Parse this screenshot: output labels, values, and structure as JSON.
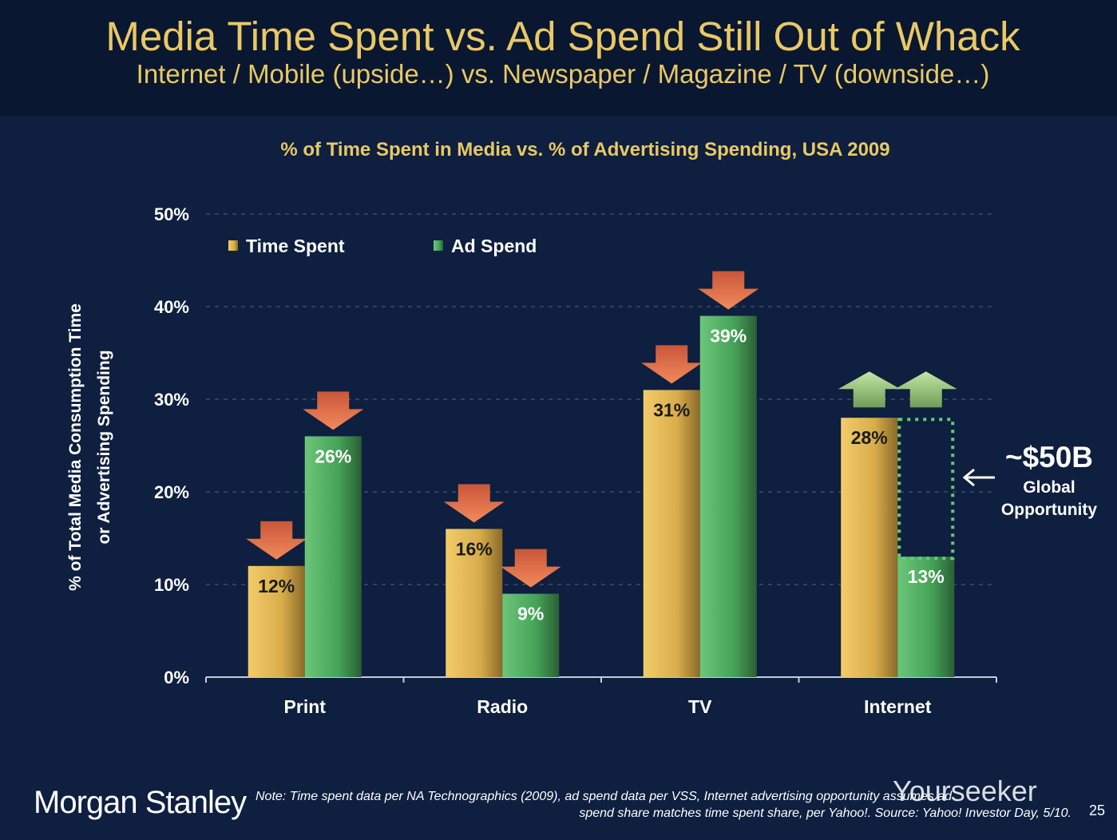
{
  "header": {
    "title": "Media Time Spent vs. Ad Spend Still Out of Whack",
    "subtitle": "Internet / Mobile (upside…) vs. Newspaper / Magazine / TV (downside…)"
  },
  "chart_data": {
    "type": "bar",
    "title": "% of Time Spent in Media vs. % of Advertising Spending, USA 2009",
    "ylabel_line1": "% of Total Media Consumption Time",
    "ylabel_line2": "or Advertising Spending",
    "xlabel": "",
    "ylim": [
      0,
      50
    ],
    "yticks": [
      "0%",
      "10%",
      "20%",
      "30%",
      "40%",
      "50%"
    ],
    "grid": true,
    "legend": "top-left",
    "categories": [
      "Print",
      "Radio",
      "TV",
      "Internet"
    ],
    "series": [
      {
        "name": "Time Spent",
        "values": [
          12,
          16,
          31,
          28
        ],
        "labels": [
          "12%",
          "16%",
          "31%",
          "28%"
        ],
        "color": "#e3b84f",
        "arrows": [
          "down",
          "down",
          "down",
          "up"
        ]
      },
      {
        "name": "Ad Spend",
        "values": [
          26,
          9,
          39,
          13
        ],
        "labels": [
          "26%",
          "9%",
          "39%",
          "13%"
        ],
        "color": "#4fb25e",
        "arrows": [
          "down",
          "down",
          "down",
          "up"
        ]
      }
    ],
    "annotation": {
      "gap_to": 28,
      "value": "~$50B",
      "line1": "Global",
      "line2": "Opportunity"
    },
    "colors": {
      "down_arrow": "#e0704a",
      "up_arrow": "#9fcf86",
      "label_dark": "#1a1a1a",
      "label_light": "#ffffff"
    }
  },
  "footer": {
    "logo": "Morgan Stanley",
    "note_line1": "Note: Time spent data per NA Technographics (2009), ad spend data per VSS, Internet advertising opportunity assumes ad",
    "note_line2": "spend share matches time spent share, per Yahoo!. Source: Yahoo! Investor Day, 5/10.",
    "page": "25",
    "watermark": "Yourseeker"
  }
}
